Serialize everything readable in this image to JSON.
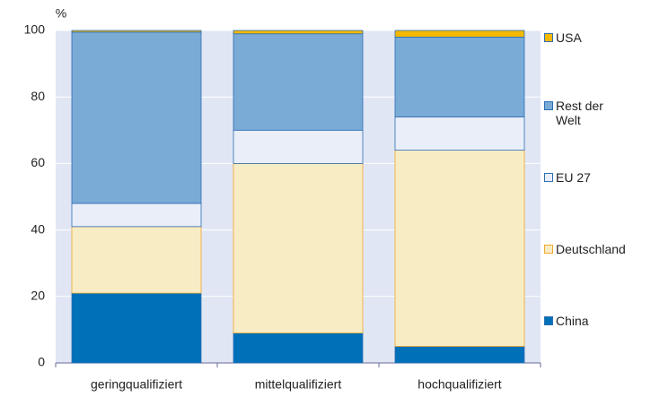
{
  "chart_data": {
    "type": "stacked_bar",
    "y_label": "%",
    "categories": [
      "geringqualifiziert",
      "mittelqualifiziert",
      "hochqualifiziert"
    ],
    "series": [
      {
        "name": "China",
        "color": "#0070b8",
        "values": [
          21,
          9,
          5
        ]
      },
      {
        "name": "Deutschland",
        "color": "#f8ecc4",
        "values": [
          20,
          51,
          59
        ]
      },
      {
        "name": "EU 27",
        "color": "#e9eef8",
        "values": [
          7,
          10,
          10
        ]
      },
      {
        "name": "Rest der Welt",
        "color": "#7aaad6",
        "values": [
          51.5,
          29,
          24
        ]
      },
      {
        "name": "USA",
        "color": "#f5b800",
        "values": [
          0.5,
          1,
          2
        ]
      }
    ],
    "ylim": [
      0,
      100
    ],
    "yticks": [
      0,
      20,
      40,
      60,
      80,
      100
    ],
    "grid": true
  }
}
